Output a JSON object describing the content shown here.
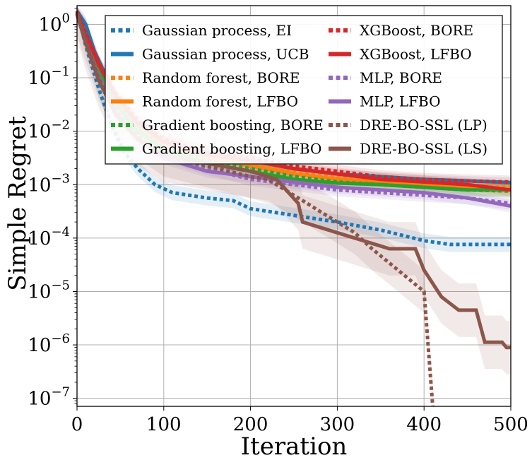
{
  "chart_data": {
    "type": "line",
    "title": "",
    "xlabel": "Iteration",
    "ylabel": "Simple Regret",
    "xlim": [
      0,
      500
    ],
    "ylim_log10": [
      -7.15,
      0.35
    ],
    "yscale": "log",
    "grid": true,
    "legend_position": "top-right",
    "x_ticks": [
      0,
      100,
      200,
      300,
      400,
      500
    ],
    "y_ticks": [
      {
        "base": "10",
        "exp": "0",
        "log10": 0
      },
      {
        "base": "10",
        "exp": "−1",
        "log10": -1
      },
      {
        "base": "10",
        "exp": "−2",
        "log10": -2
      },
      {
        "base": "10",
        "exp": "−3",
        "log10": -3
      },
      {
        "base": "10",
        "exp": "−4",
        "log10": -4
      },
      {
        "base": "10",
        "exp": "−5",
        "log10": -5
      },
      {
        "base": "10",
        "exp": "−6",
        "log10": -6
      },
      {
        "base": "10",
        "exp": "−7",
        "log10": -7
      }
    ],
    "series": [
      {
        "name": "Gaussian process, EI",
        "color": "#1f77b4",
        "dotted": true,
        "band": 0.14,
        "points": [
          [
            0,
            0.25
          ],
          [
            10,
            -0.4
          ],
          [
            25,
            -1.2
          ],
          [
            40,
            -1.9
          ],
          [
            55,
            -2.4
          ],
          [
            70,
            -2.7
          ],
          [
            90,
            -3.0
          ],
          [
            110,
            -3.15
          ],
          [
            150,
            -3.25
          ],
          [
            180,
            -3.3
          ],
          [
            200,
            -3.45
          ],
          [
            240,
            -3.55
          ],
          [
            300,
            -3.7
          ],
          [
            350,
            -3.85
          ],
          [
            400,
            -4.05
          ],
          [
            430,
            -4.12
          ],
          [
            470,
            -4.12
          ],
          [
            500,
            -4.12
          ]
        ]
      },
      {
        "name": "Gaussian process, UCB",
        "color": "#1f77b4",
        "dotted": false,
        "band": 0.09,
        "points": [
          [
            0,
            0.25
          ],
          [
            10,
            0.0
          ],
          [
            20,
            -0.5
          ],
          [
            40,
            -1.2
          ],
          [
            60,
            -1.7
          ],
          [
            80,
            -2.05
          ],
          [
            100,
            -2.2
          ],
          [
            150,
            -2.4
          ],
          [
            200,
            -2.55
          ],
          [
            250,
            -2.7
          ],
          [
            300,
            -2.8
          ],
          [
            350,
            -2.85
          ],
          [
            400,
            -2.9
          ],
          [
            450,
            -2.93
          ],
          [
            500,
            -2.96
          ]
        ]
      },
      {
        "name": "Random forest, BORE",
        "color": "#ff7f0e",
        "dotted": true,
        "band": 0.12,
        "points": [
          [
            0,
            0.22
          ],
          [
            10,
            -0.2
          ],
          [
            25,
            -0.8
          ],
          [
            45,
            -1.4
          ],
          [
            70,
            -1.9
          ],
          [
            100,
            -2.2
          ],
          [
            150,
            -2.45
          ],
          [
            200,
            -2.6
          ],
          [
            250,
            -2.75
          ],
          [
            300,
            -2.85
          ],
          [
            350,
            -2.9
          ],
          [
            400,
            -2.95
          ],
          [
            450,
            -3.0
          ],
          [
            500,
            -3.05
          ]
        ]
      },
      {
        "name": "Random forest, LFBO",
        "color": "#ff7f0e",
        "dotted": false,
        "band": 0.12,
        "points": [
          [
            0,
            0.2
          ],
          [
            10,
            -0.25
          ],
          [
            25,
            -0.85
          ],
          [
            45,
            -1.45
          ],
          [
            70,
            -1.95
          ],
          [
            100,
            -2.25
          ],
          [
            150,
            -2.5
          ],
          [
            200,
            -2.65
          ],
          [
            250,
            -2.8
          ],
          [
            300,
            -2.9
          ],
          [
            350,
            -2.95
          ],
          [
            400,
            -3.0
          ],
          [
            450,
            -3.05
          ],
          [
            500,
            -3.1
          ]
        ]
      },
      {
        "name": "Gradient boosting, BORE",
        "color": "#2ca02c",
        "dotted": true,
        "band": 0.12,
        "points": [
          [
            0,
            0.22
          ],
          [
            10,
            -0.2
          ],
          [
            25,
            -0.8
          ],
          [
            45,
            -1.45
          ],
          [
            70,
            -1.95
          ],
          [
            100,
            -2.3
          ],
          [
            150,
            -2.55
          ],
          [
            200,
            -2.7
          ],
          [
            250,
            -2.85
          ],
          [
            300,
            -2.95
          ],
          [
            350,
            -3.0
          ],
          [
            400,
            -3.05
          ],
          [
            450,
            -3.1
          ],
          [
            500,
            -3.12
          ]
        ]
      },
      {
        "name": "Gradient boosting, LFBO",
        "color": "#2ca02c",
        "dotted": false,
        "band": 0.12,
        "points": [
          [
            0,
            0.2
          ],
          [
            10,
            -0.25
          ],
          [
            25,
            -0.85
          ],
          [
            45,
            -1.5
          ],
          [
            70,
            -2.0
          ],
          [
            100,
            -2.35
          ],
          [
            150,
            -2.6
          ],
          [
            200,
            -2.75
          ],
          [
            250,
            -2.9
          ],
          [
            300,
            -2.97
          ],
          [
            350,
            -3.0
          ],
          [
            400,
            -3.05
          ],
          [
            450,
            -3.1
          ],
          [
            500,
            -3.1
          ]
        ]
      },
      {
        "name": "XGBoost, BORE",
        "color": "#d62728",
        "dotted": true,
        "band": 0.12,
        "points": [
          [
            0,
            0.24
          ],
          [
            10,
            -0.15
          ],
          [
            25,
            -0.7
          ],
          [
            45,
            -1.3
          ],
          [
            70,
            -1.8
          ],
          [
            100,
            -2.15
          ],
          [
            150,
            -2.4
          ],
          [
            200,
            -2.5
          ],
          [
            250,
            -2.65
          ],
          [
            300,
            -2.75
          ],
          [
            350,
            -2.85
          ],
          [
            400,
            -2.9
          ],
          [
            450,
            -2.93
          ],
          [
            500,
            -2.95
          ]
        ]
      },
      {
        "name": "XGBoost, LFBO",
        "color": "#d62728",
        "dotted": false,
        "band": 0.12,
        "points": [
          [
            0,
            0.22
          ],
          [
            10,
            -0.2
          ],
          [
            25,
            -0.75
          ],
          [
            45,
            -1.35
          ],
          [
            70,
            -1.85
          ],
          [
            100,
            -2.2
          ],
          [
            150,
            -2.45
          ],
          [
            200,
            -2.55
          ],
          [
            250,
            -2.7
          ],
          [
            300,
            -2.8
          ],
          [
            350,
            -2.9
          ],
          [
            400,
            -2.95
          ],
          [
            450,
            -3.0
          ],
          [
            500,
            -3.1
          ]
        ]
      },
      {
        "name": "MLP, BORE",
        "color": "#9467bd",
        "dotted": true,
        "band": 0.12,
        "points": [
          [
            0,
            0.2
          ],
          [
            10,
            -0.3
          ],
          [
            25,
            -0.95
          ],
          [
            45,
            -1.6
          ],
          [
            70,
            -2.1
          ],
          [
            100,
            -2.45
          ],
          [
            150,
            -2.7
          ],
          [
            200,
            -2.9
          ],
          [
            250,
            -3.0
          ],
          [
            300,
            -3.1
          ],
          [
            350,
            -3.15
          ],
          [
            400,
            -3.2
          ],
          [
            450,
            -3.25
          ],
          [
            500,
            -3.35
          ]
        ]
      },
      {
        "name": "MLP, LFBO",
        "color": "#9467bd",
        "dotted": false,
        "band": 0.12,
        "points": [
          [
            0,
            0.18
          ],
          [
            10,
            -0.35
          ],
          [
            25,
            -1.0
          ],
          [
            45,
            -1.65
          ],
          [
            70,
            -2.15
          ],
          [
            100,
            -2.5
          ],
          [
            150,
            -2.75
          ],
          [
            200,
            -2.85
          ],
          [
            250,
            -2.95
          ],
          [
            300,
            -3.05
          ],
          [
            350,
            -3.1
          ],
          [
            400,
            -3.15
          ],
          [
            450,
            -3.25
          ],
          [
            500,
            -3.4
          ]
        ]
      },
      {
        "name": "DRE-BO-SSL (LP)",
        "color": "#8c564b",
        "dotted": true,
        "band": 0.4,
        "points": [
          [
            0,
            0.2
          ],
          [
            10,
            -0.3
          ],
          [
            25,
            -1.0
          ],
          [
            45,
            -1.65
          ],
          [
            70,
            -2.1
          ],
          [
            100,
            -2.45
          ],
          [
            150,
            -2.65
          ],
          [
            200,
            -2.85
          ],
          [
            220,
            -2.9
          ],
          [
            240,
            -3.1
          ],
          [
            260,
            -3.3
          ],
          [
            280,
            -3.5
          ],
          [
            300,
            -3.7
          ],
          [
            320,
            -3.9
          ],
          [
            340,
            -4.2
          ],
          [
            370,
            -4.6
          ],
          [
            400,
            -5.0
          ],
          [
            410,
            -7.15
          ]
        ]
      },
      {
        "name": "DRE-BO-SSL (LS)",
        "color": "#8c564b",
        "dotted": false,
        "band": 0.5,
        "points": [
          [
            0,
            0.2
          ],
          [
            10,
            -0.35
          ],
          [
            25,
            -1.05
          ],
          [
            45,
            -1.7
          ],
          [
            70,
            -2.15
          ],
          [
            100,
            -2.45
          ],
          [
            150,
            -2.6
          ],
          [
            200,
            -2.75
          ],
          [
            230,
            -2.9
          ],
          [
            255,
            -3.35
          ],
          [
            260,
            -3.7
          ],
          [
            280,
            -3.8
          ],
          [
            300,
            -3.9
          ],
          [
            330,
            -4.05
          ],
          [
            350,
            -4.15
          ],
          [
            360,
            -4.2
          ],
          [
            390,
            -4.2
          ],
          [
            400,
            -4.6
          ],
          [
            420,
            -5.1
          ],
          [
            440,
            -5.35
          ],
          [
            460,
            -5.35
          ],
          [
            470,
            -5.95
          ],
          [
            490,
            -5.95
          ],
          [
            495,
            -6.05
          ],
          [
            500,
            -6.05
          ]
        ]
      }
    ]
  }
}
